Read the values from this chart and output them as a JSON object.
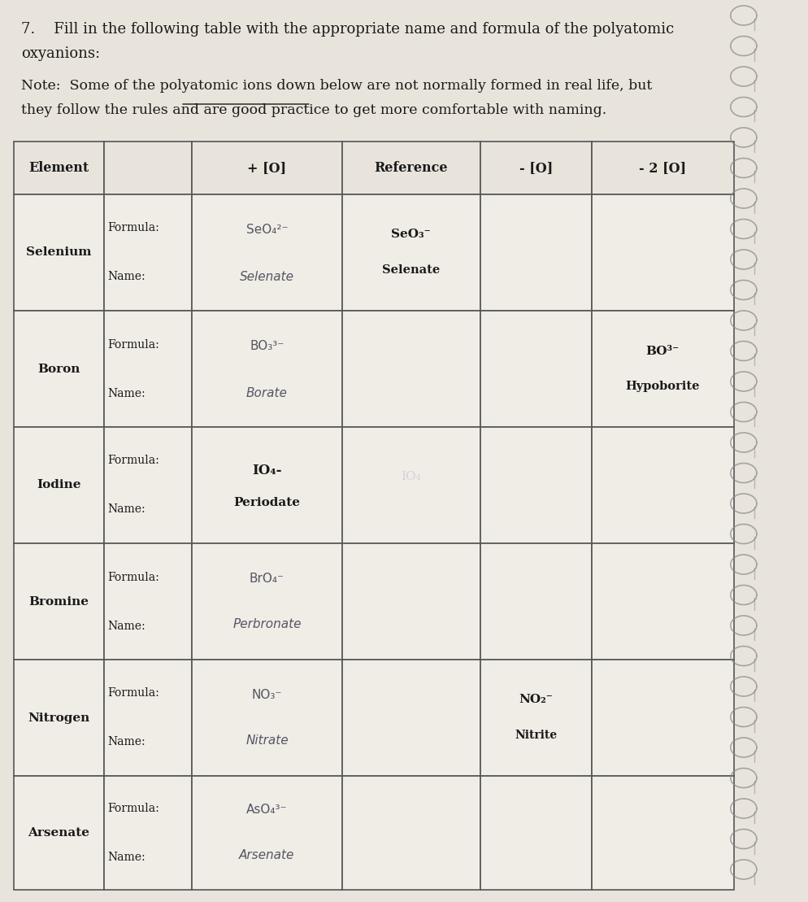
{
  "title_line1": "7.    Fill in the following table with the appropriate name and formula of the polyatomic",
  "title_line2": "oxyanions:",
  "note_line1": "Note:  Some of the polyatomic ions down below are not normally formed in real life, but",
  "note_line2": "they follow the rules and are good practice to get more comfortable with naming.",
  "col_headers": [
    "Element",
    "",
    "+ [O]",
    "Reference",
    "- [O]",
    "- 2 [O]"
  ],
  "bg_color": "#e8e4dc",
  "cell_bg": "#f0ede6",
  "header_bg": "#e8e4dc",
  "line_color": "#555555",
  "text_color": "#1a1a1a",
  "handwritten_color": "#555566"
}
